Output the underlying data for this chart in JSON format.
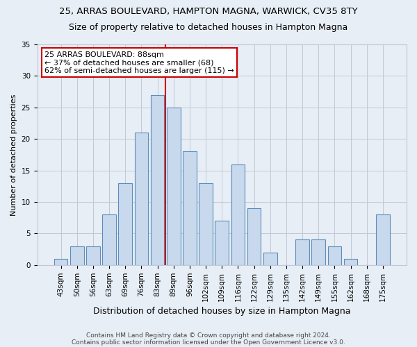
{
  "title": "25, ARRAS BOULEVARD, HAMPTON MAGNA, WARWICK, CV35 8TY",
  "subtitle": "Size of property relative to detached houses in Hampton Magna",
  "xlabel": "Distribution of detached houses by size in Hampton Magna",
  "ylabel": "Number of detached properties",
  "footer1": "Contains HM Land Registry data © Crown copyright and database right 2024.",
  "footer2": "Contains public sector information licensed under the Open Government Licence v3.0.",
  "bar_labels": [
    "43sqm",
    "50sqm",
    "56sqm",
    "63sqm",
    "69sqm",
    "76sqm",
    "83sqm",
    "89sqm",
    "96sqm",
    "102sqm",
    "109sqm",
    "116sqm",
    "122sqm",
    "129sqm",
    "135sqm",
    "142sqm",
    "149sqm",
    "155sqm",
    "162sqm",
    "168sqm",
    "175sqm"
  ],
  "bar_values": [
    1,
    3,
    3,
    8,
    13,
    21,
    27,
    25,
    18,
    13,
    7,
    16,
    9,
    2,
    0,
    4,
    4,
    3,
    1,
    0,
    8
  ],
  "bar_color": "#c9d9ed",
  "bar_edge_color": "#5b8db8",
  "property_label": "25 ARRAS BOULEVARD: 88sqm",
  "pct_smaller": 37,
  "n_smaller": 68,
  "pct_larger_semi": 62,
  "n_larger_semi": 115,
  "annotation_box_color": "#ffffff",
  "annotation_box_edge": "#cc0000",
  "vline_color": "#cc0000",
  "vline_bin_index": 6.5,
  "ylim": [
    0,
    35
  ],
  "yticks": [
    0,
    5,
    10,
    15,
    20,
    25,
    30,
    35
  ],
  "grid_color": "#c0c8d8",
  "bg_color": "#e8eef5",
  "title_fontsize": 9.5,
  "subtitle_fontsize": 9,
  "tick_fontsize": 7.5,
  "ylabel_fontsize": 8,
  "xlabel_fontsize": 9,
  "footer_fontsize": 6.5,
  "ann_fontsize": 8
}
